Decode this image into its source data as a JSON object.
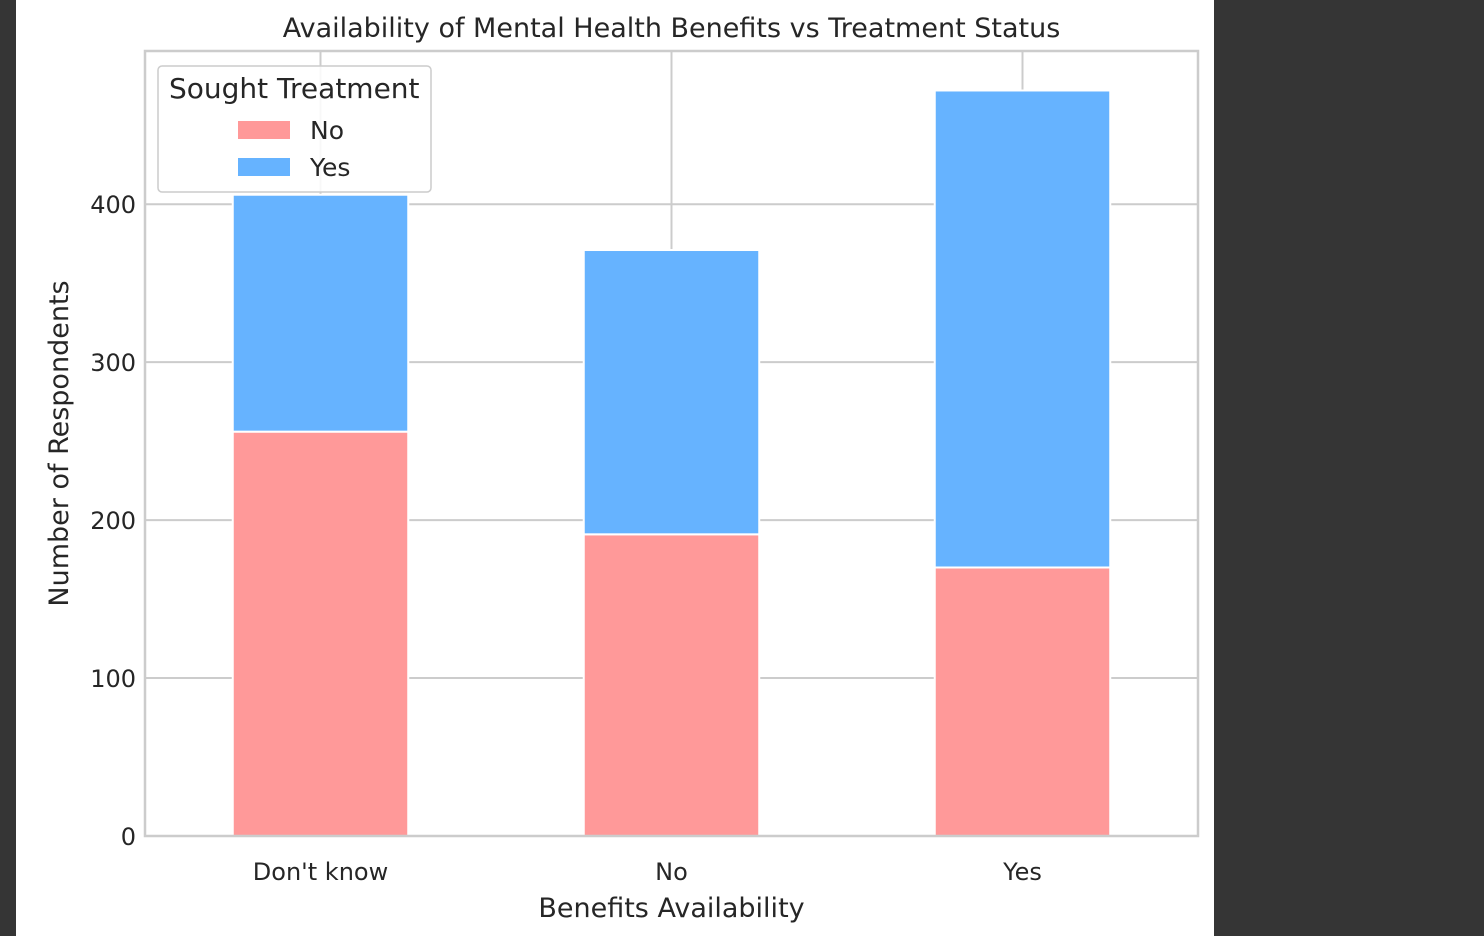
{
  "chart_data": {
    "type": "bar",
    "stacked": true,
    "title": "Availability of Mental Health Benefits vs Treatment Status",
    "xlabel": "Benefits Availability",
    "ylabel": "Number of Respondents",
    "categories": [
      "Don't know",
      "No",
      "Yes"
    ],
    "series": [
      {
        "name": "No",
        "color": "#ff9999",
        "values": [
          256,
          191,
          170
        ]
      },
      {
        "name": "Yes",
        "color": "#66b3ff",
        "values": [
          150,
          180,
          302
        ]
      }
    ],
    "ylim": [
      0,
      497
    ],
    "yticks": [
      0,
      100,
      200,
      300,
      400
    ],
    "grid": true,
    "legend": {
      "title": "Sought Treatment",
      "placement": "upper-left"
    }
  }
}
